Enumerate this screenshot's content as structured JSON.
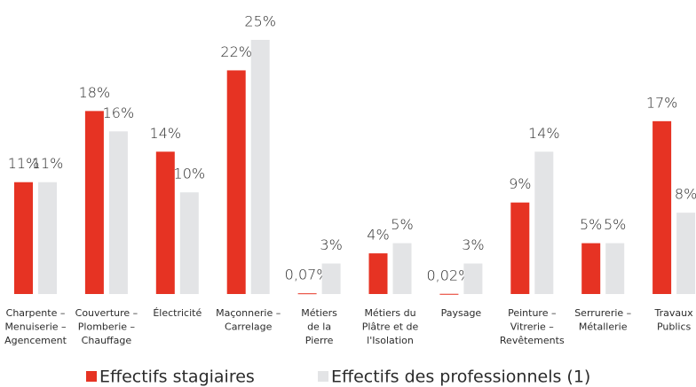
{
  "chart_data": {
    "type": "bar",
    "categories": [
      [
        "Charpente –",
        "Menuiserie –",
        "Agencement"
      ],
      [
        "Couverture –",
        "Plomberie –",
        "Chauffage"
      ],
      [
        "Électricité"
      ],
      [
        "Maçonnerie –",
        "Carrelage"
      ],
      [
        "Métiers",
        "de la",
        "Pierre"
      ],
      [
        "Métiers du",
        "Plâtre et de",
        "l'Isolation"
      ],
      [
        "Paysage"
      ],
      [
        "Peinture –",
        "Vitrerie –",
        "Revêtements"
      ],
      [
        "Serrurerie –",
        "Métallerie"
      ],
      [
        "Travaux",
        "Publics"
      ]
    ],
    "series": [
      {
        "name": "Effectifs stagiaires",
        "color": "#e63323",
        "values": [
          11,
          18,
          14,
          22,
          0.07,
          4,
          0.02,
          9,
          5,
          17
        ],
        "value_labels": [
          "11%",
          "18%",
          "14%",
          "22%",
          "0,07%",
          "4%",
          "0,02%",
          "9%",
          "5%",
          "17%"
        ]
      },
      {
        "name": "Effectifs des professionnels (1)",
        "color": "#e3e4e6",
        "values": [
          11,
          16,
          10,
          25,
          3,
          5,
          3,
          14,
          5,
          8
        ],
        "value_labels": [
          "11%",
          "16%",
          "10%",
          "25%",
          "3%",
          "5%",
          "3%",
          "14%",
          "5%",
          "8%"
        ]
      }
    ],
    "ylim": [
      0,
      25
    ]
  }
}
